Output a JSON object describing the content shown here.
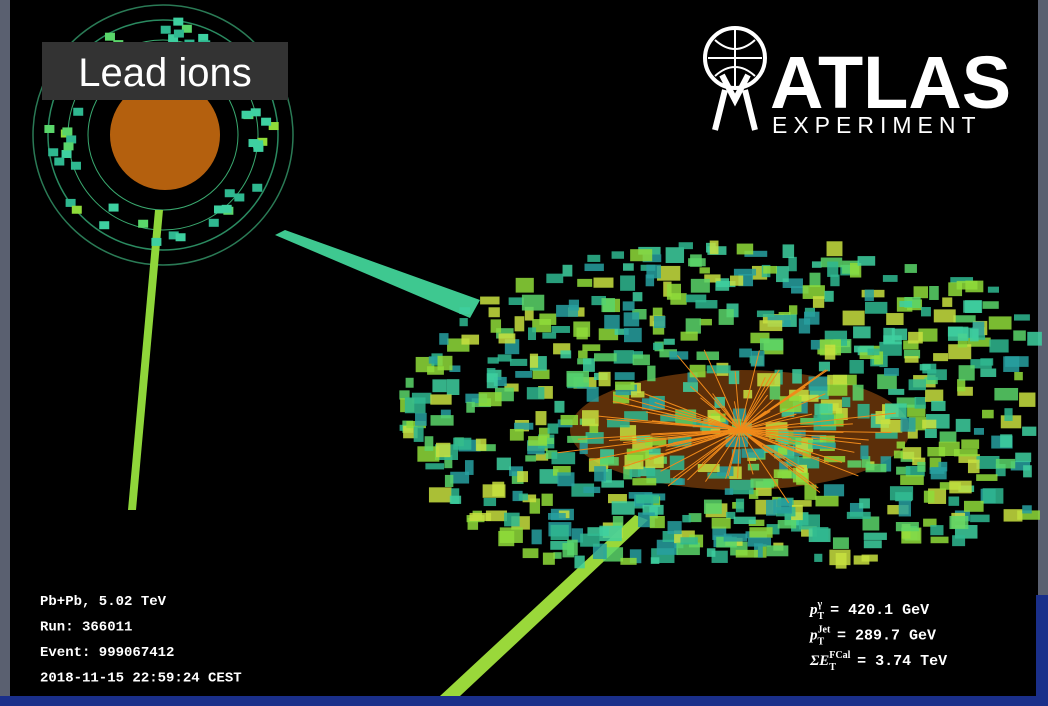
{
  "label": "Lead ions",
  "logo": {
    "name": "ATLAS",
    "subtitle": "EXPERIMENT"
  },
  "event_info": [
    "Pb+Pb, 5.02 TeV",
    "Run: 366011",
    "Event: 999067412",
    "2018-11-15 22:59:24 CEST"
  ],
  "measurements": [
    {
      "symbol": "p",
      "sub": "T",
      "sup": "γ",
      "value": "= 420.1 GeV"
    },
    {
      "symbol": "p",
      "sub": "T",
      "sup": "Jet",
      "value": "= 289.7 GeV"
    },
    {
      "symbol": "ΣE",
      "sub": "T",
      "sup": "FCal",
      "value": "= 3.74 TeV"
    }
  ]
}
